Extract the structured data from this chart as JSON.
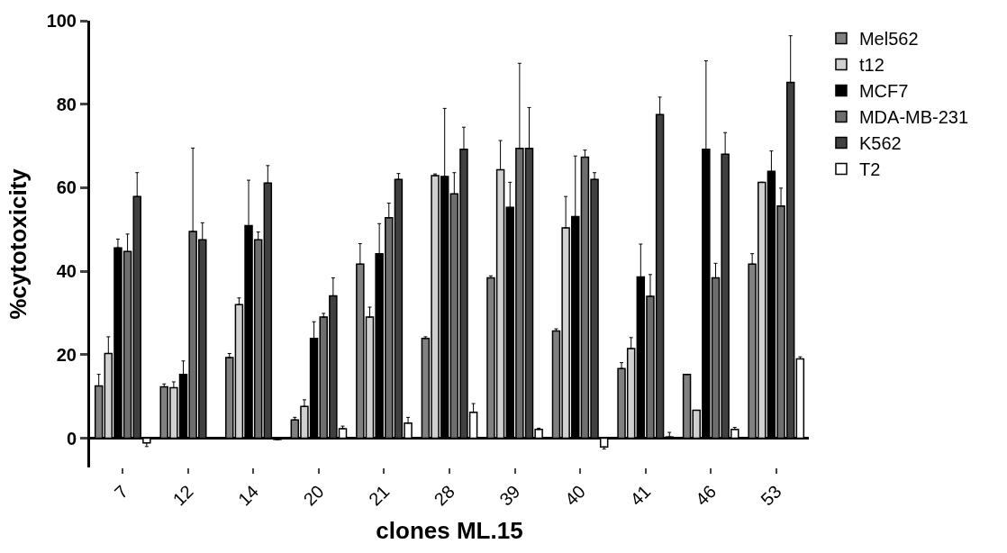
{
  "chart_data": {
    "type": "bar",
    "xlabel": "clones ML.15",
    "ylabel": "%cytotoxicity",
    "categories": [
      "7",
      "12",
      "14",
      "20",
      "21",
      "28",
      "39",
      "40",
      "41",
      "46",
      "53"
    ],
    "ylim": [
      -7,
      100
    ],
    "yticks": [
      0,
      20,
      40,
      60,
      80,
      100
    ],
    "legend": "top right",
    "series": [
      {
        "name": "Mel562",
        "color": "#808080",
        "values": [
          12.5,
          12.3,
          19.3,
          4.4,
          41.7,
          23.9,
          38.4,
          25.7,
          16.7,
          15.3,
          41.7
        ],
        "errors": [
          [
            12.5,
            15.3
          ],
          [
            12.3,
            13.0
          ],
          [
            19.3,
            20.3
          ],
          [
            4.4,
            5.0
          ],
          [
            41.7,
            46.6
          ],
          [
            23.9,
            24.3
          ],
          [
            38.4,
            38.9
          ],
          [
            25.7,
            26.2
          ],
          [
            16.7,
            18.1
          ],
          null,
          [
            41.7,
            44.2
          ]
        ]
      },
      {
        "name": "t12",
        "color": "#d0d0d0",
        "values": [
          20.3,
          12.1,
          32.0,
          7.6,
          29.0,
          62.9,
          64.3,
          50.4,
          21.5,
          6.7,
          61.3
        ],
        "errors": [
          [
            20.3,
            24.3
          ],
          [
            12.1,
            13.5
          ],
          [
            32.0,
            33.6
          ],
          [
            7.6,
            9.2
          ],
          [
            29.0,
            31.4
          ],
          [
            62.9,
            63.3
          ],
          [
            64.3,
            71.3
          ],
          [
            50.4,
            57.9
          ],
          [
            21.5,
            24.1
          ],
          null,
          null
        ]
      },
      {
        "name": "MCF7",
        "color": "#000000",
        "values": [
          45.6,
          15.3,
          50.9,
          23.9,
          44.2,
          62.7,
          55.3,
          53.1,
          38.6,
          69.2,
          63.9
        ],
        "errors": [
          [
            45.6,
            47.7
          ],
          [
            15.3,
            18.5
          ],
          [
            50.9,
            61.8
          ],
          [
            23.9,
            27.9
          ],
          [
            44.2,
            51.4
          ],
          [
            62.7,
            79.0
          ],
          [
            55.3,
            61.3
          ],
          [
            53.1,
            67.6
          ],
          [
            38.6,
            46.5
          ],
          [
            69.2,
            90.4
          ],
          [
            63.9,
            68.8
          ]
        ]
      },
      {
        "name": "MDA-MB-231",
        "color": "#6e6e6e",
        "values": [
          44.7,
          49.5,
          47.5,
          29.0,
          52.8,
          58.5,
          69.4,
          67.3,
          34.0,
          38.4,
          55.6
        ],
        "errors": [
          [
            44.7,
            48.9
          ],
          [
            49.5,
            69.5
          ],
          [
            47.5,
            49.4
          ],
          [
            29.0,
            29.9
          ],
          [
            52.8,
            56.3
          ],
          [
            58.5,
            63.6
          ],
          [
            69.4,
            89.8
          ],
          [
            67.3,
            69.0
          ],
          [
            34.0,
            39.2
          ],
          [
            38.4,
            41.9
          ],
          [
            55.6,
            59.9
          ]
        ]
      },
      {
        "name": "K562",
        "color": "#404040",
        "values": [
          57.9,
          47.5,
          61.1,
          34.1,
          62.0,
          69.2,
          69.4,
          62.0,
          77.5,
          68.0,
          85.2
        ],
        "errors": [
          [
            57.9,
            63.6
          ],
          [
            47.5,
            51.6
          ],
          [
            61.1,
            65.3
          ],
          [
            34.1,
            38.4
          ],
          [
            62.0,
            63.4
          ],
          [
            69.2,
            74.5
          ],
          [
            69.4,
            79.2
          ],
          [
            62.0,
            63.6
          ],
          [
            77.5,
            81.7
          ],
          [
            68.0,
            73.2
          ],
          [
            85.2,
            96.4
          ]
        ]
      },
      {
        "name": "T2",
        "color": "#ffffff",
        "values": [
          -1.1,
          null,
          -0.3,
          2.3,
          3.6,
          6.2,
          2.1,
          -2.1,
          0.3,
          2.1,
          19.0
        ],
        "errors": [
          [
            -2.0,
            -1.1
          ],
          null,
          null,
          [
            2.3,
            2.9
          ],
          [
            3.6,
            5.0
          ],
          [
            6.2,
            8.3
          ],
          [
            2.1,
            2.4
          ],
          [
            -2.6,
            -2.1
          ],
          [
            0.3,
            1.4
          ],
          [
            2.1,
            2.6
          ],
          [
            19.0,
            19.5
          ]
        ]
      }
    ]
  }
}
